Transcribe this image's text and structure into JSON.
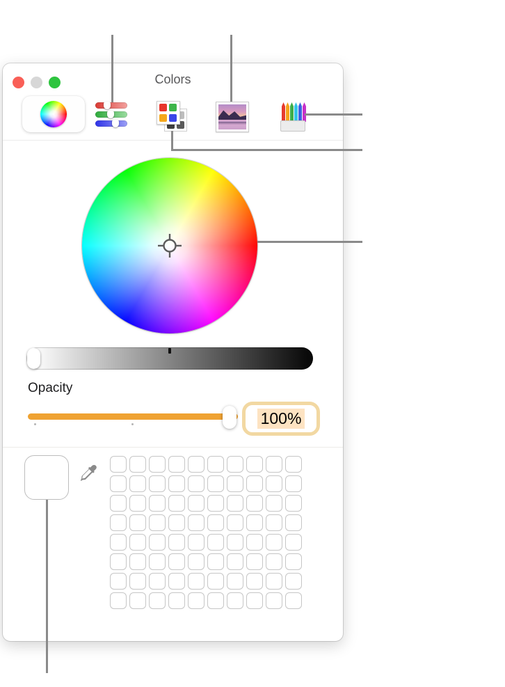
{
  "window": {
    "title": "Colors",
    "traffic_lights": {
      "close_color": "#f95f57",
      "minimize_color": "#d7d7d7",
      "zoom_color": "#2ec43f"
    },
    "toolbar": {
      "selected_item": "color-wheel",
      "icons": [
        "color-wheel-icon",
        "color-sliders-icon",
        "color-palettes-icon",
        "image-palettes-icon",
        "pencils-icon"
      ]
    }
  },
  "color_wheel": {
    "crosshair_position": "center",
    "selected_color": "#ffffff"
  },
  "brightness_slider": {
    "knob_position": "left",
    "tick_position": "center",
    "gradient": [
      "#ffffff",
      "#000000"
    ]
  },
  "opacity": {
    "label": "Opacity",
    "value": "100%",
    "slider_percent": 100,
    "track_color": "#efa232",
    "focus_ring_color": "#f2d8a2",
    "selection_highlight_color": "#fde3c2"
  },
  "color_well": {
    "current_color": "#ffffff"
  },
  "swatch_grid": {
    "rows": 8,
    "cols": 10
  },
  "icon_colors": {
    "slider_rows": [
      "#d93a34",
      "#2faa3c",
      "#2f33e8"
    ],
    "palette_front": [
      "#e8352c",
      "#3db549",
      "#f5a81c",
      "#3a46e8"
    ],
    "palette_back": [
      "#c7c7c7",
      "#bdbdbd",
      "#3f3f3f",
      "#5a5a5a"
    ],
    "pencils": [
      "#e63b2e",
      "#f5a31c",
      "#3fae49",
      "#35c4e8",
      "#3e63e0",
      "#c631c9"
    ]
  },
  "callout_line_color": "#8a8a8a"
}
